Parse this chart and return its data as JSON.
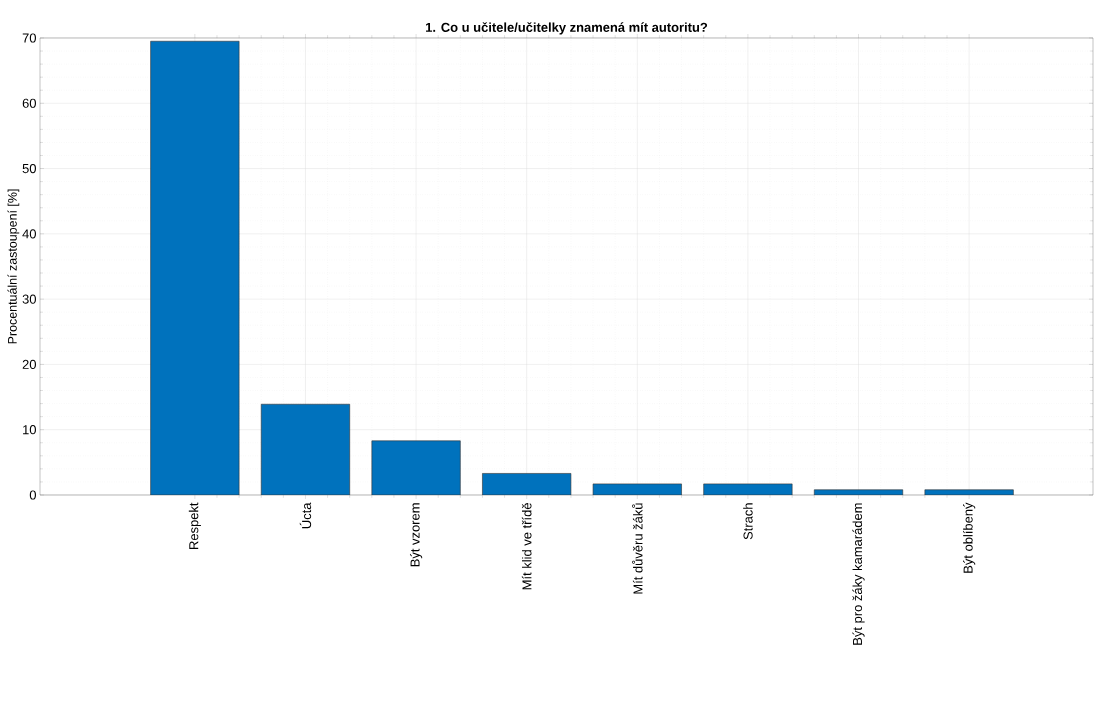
{
  "chart_data": {
    "type": "bar",
    "title": "1. Co u učitele/učitelky znamená mít autoritu?",
    "ylabel": "Procentuální zastoupení [%]",
    "categories": [
      "Respekt",
      "Úcta",
      "Být vzorem",
      "Mít klid ve třídě",
      "Mít důvěru žáků",
      "Strach",
      "Být pro žáky kamarádem",
      "Být oblíbený"
    ],
    "values": [
      69.5,
      13.9,
      8.3,
      3.3,
      1.7,
      1.7,
      0.8,
      0.8
    ],
    "color": "#0072bd",
    "ylim": [
      0,
      70
    ],
    "yticks": [
      0,
      10,
      20,
      30,
      40,
      50,
      60,
      70
    ],
    "grid": true
  }
}
